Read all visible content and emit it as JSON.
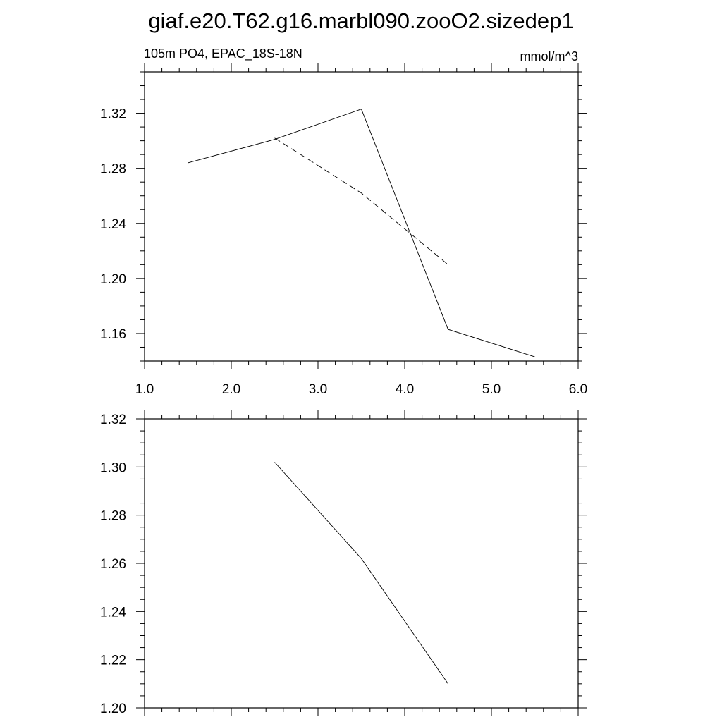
{
  "title": "giaf.e20.T62.g16.marbl090.zooO2.sizedep1",
  "chart_data": [
    {
      "type": "line",
      "left_label": "105m PO4, EPAC_18S-18N",
      "right_label": "mmol/m^3",
      "xlim": [
        1.0,
        6.0
      ],
      "ylim": [
        1.14,
        1.35
      ],
      "x_ticks": [
        1.0,
        2.0,
        3.0,
        4.0,
        5.0,
        6.0
      ],
      "x_tick_labels": [
        "1.0",
        "2.0",
        "3.0",
        "4.0",
        "5.0",
        "6.0"
      ],
      "y_ticks": [
        1.16,
        1.2,
        1.24,
        1.28,
        1.32
      ],
      "y_tick_labels": [
        "1.16",
        "1.20",
        "1.24",
        "1.28",
        "1.32"
      ],
      "series": [
        {
          "style": "solid",
          "x": [
            1.5,
            2.5,
            3.5,
            4.5,
            5.5
          ],
          "y": [
            1.284,
            1.301,
            1.323,
            1.163,
            1.143
          ]
        },
        {
          "style": "dashed",
          "x": [
            2.5,
            3.5,
            4.5
          ],
          "y": [
            1.302,
            1.262,
            1.21
          ]
        }
      ]
    },
    {
      "type": "line",
      "xlim": [
        1.0,
        6.0
      ],
      "ylim": [
        1.2,
        1.32
      ],
      "x_ticks": [
        1.0,
        2.0,
        3.0,
        4.0,
        5.0,
        6.0
      ],
      "y_ticks": [
        1.2,
        1.22,
        1.24,
        1.26,
        1.28,
        1.3,
        1.32
      ],
      "y_tick_labels": [
        "1.20",
        "1.22",
        "1.24",
        "1.26",
        "1.28",
        "1.30",
        "1.32"
      ],
      "series": [
        {
          "style": "solid",
          "x": [
            2.5,
            3.5,
            4.5
          ],
          "y": [
            1.302,
            1.262,
            1.21
          ]
        }
      ]
    }
  ]
}
